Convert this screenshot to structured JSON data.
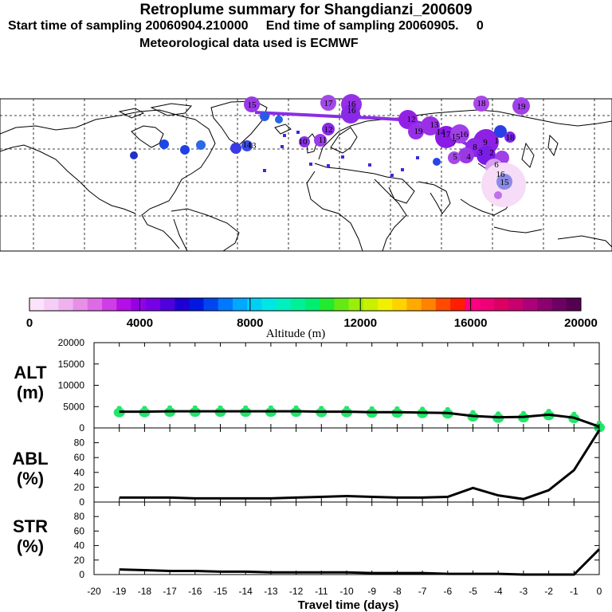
{
  "header": {
    "title": "Retroplume summary for Shangdianzi_200609",
    "sampling": "Start time of sampling 20060904.210000     End time of sampling 20060905.     0",
    "met": "Meteorological data used is ECMWF"
  },
  "map": {
    "plume_day_labels": [
      "15",
      "16",
      "17",
      "16",
      "18",
      "19",
      "12",
      "13",
      "14",
      "15",
      "16",
      "7",
      "8",
      "9",
      "1",
      "2",
      "3",
      "4",
      "5",
      "6",
      "10",
      "11",
      "12",
      "13",
      "14",
      "15",
      "16",
      "17",
      "18",
      "19"
    ]
  },
  "colorbar": {
    "title": "Altitude (m)",
    "tick_labels": [
      "0",
      "4000",
      "8000",
      "12000",
      "16000",
      "20000"
    ],
    "range": [
      0,
      20000
    ],
    "colors": [
      "#fbe4fb",
      "#f5cdf5",
      "#efb2ef",
      "#e88fe8",
      "#df6ae6",
      "#cf3de6",
      "#b60ee6",
      "#9600e6",
      "#7800e6",
      "#5000dc",
      "#1e00d2",
      "#0018e0",
      "#0046f0",
      "#0078ff",
      "#00a8ff",
      "#00cff5",
      "#00e6e6",
      "#00f0c0",
      "#00f098",
      "#00ee70",
      "#22ea2e",
      "#64ea12",
      "#9aee0a",
      "#c8f000",
      "#f0f000",
      "#ffd200",
      "#ffaa00",
      "#ff8200",
      "#ff4b00",
      "#ff1e00",
      "#ff0080",
      "#f00078",
      "#dc0064",
      "#c8006e",
      "#ae0078",
      "#8c0070",
      "#6e0064",
      "#550050"
    ]
  },
  "chart_data": {
    "type": "line",
    "xlabel": "Travel time (days)",
    "x_ticks": [
      "-20",
      "-19",
      "-18",
      "-17",
      "-16",
      "-15",
      "-14",
      "-13",
      "-12",
      "-11",
      "-10",
      "-9",
      "-8",
      "-7",
      "-6",
      "-5",
      "-4",
      "-3",
      "-2",
      "-1",
      "0"
    ],
    "x_tick_values": [
      -20,
      -19,
      -18,
      -17,
      -16,
      -15,
      -14,
      -13,
      -12,
      -11,
      -10,
      -9,
      -8,
      -7,
      -6,
      -5,
      -4,
      -3,
      -2,
      -1,
      0
    ],
    "x": [
      -19,
      -18,
      -17,
      -16,
      -15,
      -14,
      -13,
      -12,
      -11,
      -10,
      -9,
      -8,
      -7,
      -6,
      -5,
      -4,
      -3,
      -2,
      -1,
      0
    ],
    "xlim": [
      -20,
      0
    ],
    "panels": [
      {
        "label": "ALT",
        "unit": "(m)",
        "ylim": [
          0,
          20000
        ],
        "y_ticks": [
          "0",
          "5000",
          "10000",
          "15000",
          "20000"
        ],
        "y_tick_values": [
          0,
          5000,
          10000,
          15000,
          20000
        ],
        "series": [
          {
            "name": "mean altitude",
            "values": [
              3800,
              3800,
              3900,
              3900,
              3900,
              3900,
              3900,
              3900,
              3800,
              3800,
              3700,
              3700,
              3600,
              3500,
              2800,
              2500,
              2600,
              3100,
              2400,
              300
            ]
          }
        ]
      },
      {
        "label": "ABL",
        "unit": "(%)",
        "ylim": [
          0,
          100
        ],
        "y_ticks": [
          "0",
          "20",
          "40",
          "60",
          "80"
        ],
        "y_tick_values": [
          0,
          20,
          40,
          60,
          80
        ],
        "series": [
          {
            "name": "fraction in boundary layer",
            "values": [
              6,
              6,
              6,
              5,
              5,
              5,
              5,
              6,
              7,
              8,
              7,
              6,
              6,
              7,
              19,
              9,
              4,
              16,
              43,
              97
            ]
          }
        ]
      },
      {
        "label": "STR",
        "unit": "(%)",
        "ylim": [
          0,
          100
        ],
        "y_ticks": [
          "0",
          "20",
          "40",
          "60",
          "80"
        ],
        "y_tick_values": [
          0,
          20,
          40,
          60,
          80
        ],
        "series": [
          {
            "name": "fraction in stratosphere",
            "values": [
              7,
              6,
              5,
              5,
              4,
              4,
              3,
              3,
              3,
              3,
              2,
              2,
              2,
              1,
              1,
              1,
              0,
              0,
              0,
              35
            ]
          }
        ]
      }
    ]
  }
}
